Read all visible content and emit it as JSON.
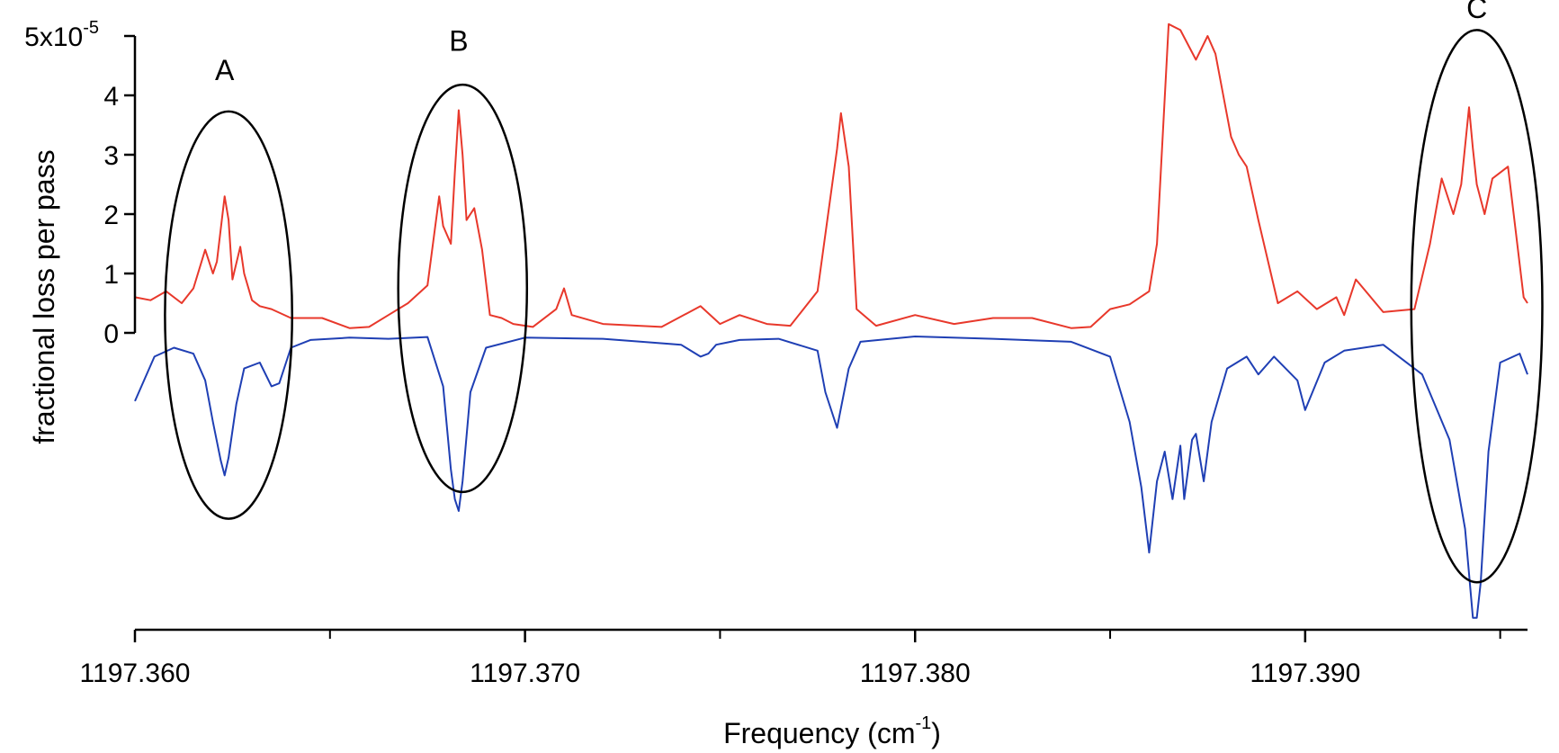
{
  "chart_data": {
    "type": "line",
    "xlabel": "Frequency (cm",
    "xlabel_sup": "-1",
    "xlabel_tail": ")",
    "ylabel": "fractional loss per pass",
    "xlim": [
      1197.36,
      1197.3957
    ],
    "ylim": [
      -5e-05,
      5e-05
    ],
    "x_major_ticks": [
      1197.36,
      1197.37,
      1197.38,
      1197.39
    ],
    "x_major_tick_labels": [
      "1197.360",
      "1197.370",
      "1197.380",
      "1197.390"
    ],
    "x_minor_ticks": [
      1197.365,
      1197.375,
      1197.385,
      1197.395
    ],
    "y_ticks": [
      0,
      1e-05,
      2e-05,
      3e-05,
      4e-05,
      5e-05
    ],
    "y_tick_labels": [
      "0",
      "1",
      "2",
      "3",
      "4",
      "5x10"
    ],
    "y_top_label_sup": "-5",
    "annotations": [
      {
        "label": "A",
        "x": 1197.3623,
        "y": 4.26e-05,
        "ellipse_center": [
          1197.3624,
          3e-06
        ],
        "ellipse_rx": 0.00163,
        "ellipse_ry": 3.43e-05
      },
      {
        "label": "B",
        "x": 1197.3683,
        "y": 4.75e-05,
        "ellipse_center": [
          1197.3684,
          7.5e-06
        ],
        "ellipse_rx": 0.00165,
        "ellipse_ry": 3.43e-05
      },
      {
        "label": "C",
        "x": 1197.3944,
        "y": 5.3e-05,
        "ellipse_center": [
          1197.3944,
          4.5e-06
        ],
        "ellipse_rx": 0.00168,
        "ellipse_ry": 4.65e-05
      }
    ],
    "series": [
      {
        "color": "#e8382b",
        "x": [
          1197.36,
          1197.3604,
          1197.3608,
          1197.3612,
          1197.3615,
          1197.3618,
          1197.362,
          1197.3621,
          1197.3623,
          1197.3624,
          1197.3625,
          1197.3627,
          1197.3628,
          1197.363,
          1197.3632,
          1197.3635,
          1197.364,
          1197.3648,
          1197.3655,
          1197.366,
          1197.3665,
          1197.367,
          1197.3675,
          1197.3678,
          1197.3679,
          1197.3681,
          1197.3682,
          1197.3683,
          1197.3684,
          1197.3685,
          1197.3687,
          1197.3689,
          1197.3691,
          1197.3694,
          1197.3697,
          1197.3702,
          1197.3708,
          1197.371,
          1197.3712,
          1197.372,
          1197.3735,
          1197.3745,
          1197.375,
          1197.3755,
          1197.3762,
          1197.3768,
          1197.3775,
          1197.378,
          1197.3781,
          1197.3783,
          1197.3785,
          1197.379,
          1197.38,
          1197.381,
          1197.382,
          1197.383,
          1197.384,
          1197.3845,
          1197.385,
          1197.3855,
          1197.386,
          1197.3862,
          1197.3865,
          1197.3868,
          1197.3872,
          1197.3875,
          1197.3877,
          1197.3879,
          1197.3881,
          1197.3883,
          1197.3885,
          1197.3888,
          1197.3893,
          1197.3898,
          1197.3903,
          1197.3908,
          1197.391,
          1197.3913,
          1197.392,
          1197.3928,
          1197.3932,
          1197.3935,
          1197.3938,
          1197.394,
          1197.3942,
          1197.3943,
          1197.3944,
          1197.3946,
          1197.3948,
          1197.3952,
          1197.3956,
          1197.3957
        ],
        "values": [
          6e-06,
          5.5e-06,
          7e-06,
          5e-06,
          7.5e-06,
          1.4e-05,
          1e-05,
          1.2e-05,
          2.3e-05,
          1.9e-05,
          9e-06,
          1.45e-05,
          1e-05,
          5.5e-06,
          4.5e-06,
          4e-06,
          2.5e-06,
          2.5e-06,
          8e-07,
          1e-06,
          3e-06,
          5e-06,
          8e-06,
          2.3e-05,
          1.8e-05,
          1.5e-05,
          2.7e-05,
          3.75e-05,
          3e-05,
          1.9e-05,
          2.1e-05,
          1.4e-05,
          3e-06,
          2.5e-06,
          1.5e-06,
          1e-06,
          4e-06,
          7.5e-06,
          3e-06,
          1.5e-06,
          1e-06,
          4.5e-06,
          1.5e-06,
          3e-06,
          1.5e-06,
          1.2e-06,
          7e-06,
          3.1e-05,
          3.7e-05,
          2.8e-05,
          4e-06,
          1.2e-06,
          3e-06,
          1.5e-06,
          2.5e-06,
          2.5e-06,
          8e-07,
          1e-06,
          4e-06,
          4.8e-06,
          7e-06,
          1.5e-05,
          5.2e-05,
          5.1e-05,
          4.6e-05,
          5e-05,
          4.7e-05,
          4e-05,
          3.3e-05,
          3e-05,
          2.8e-05,
          1.9e-05,
          5e-06,
          7e-06,
          4e-06,
          6e-06,
          3e-06,
          9e-06,
          3.5e-06,
          4e-06,
          1.5e-05,
          2.6e-05,
          2e-05,
          2.5e-05,
          3.8e-05,
          3.1e-05,
          2.5e-05,
          2e-05,
          2.6e-05,
          2.8e-05,
          6e-06,
          5e-06
        ]
      },
      {
        "color": "#1f3fb4",
        "x": [
          1197.36,
          1197.3605,
          1197.361,
          1197.3615,
          1197.3618,
          1197.362,
          1197.3622,
          1197.3623,
          1197.3624,
          1197.3626,
          1197.3628,
          1197.3632,
          1197.3635,
          1197.3637,
          1197.364,
          1197.3645,
          1197.3655,
          1197.3665,
          1197.3675,
          1197.3679,
          1197.3681,
          1197.3682,
          1197.3683,
          1197.3684,
          1197.3686,
          1197.369,
          1197.37,
          1197.372,
          1197.374,
          1197.3745,
          1197.3747,
          1197.3749,
          1197.3755,
          1197.3765,
          1197.3775,
          1197.3777,
          1197.378,
          1197.3783,
          1197.3786,
          1197.38,
          1197.382,
          1197.384,
          1197.385,
          1197.3855,
          1197.3858,
          1197.386,
          1197.3862,
          1197.3864,
          1197.3866,
          1197.3868,
          1197.3869,
          1197.3871,
          1197.3872,
          1197.3874,
          1197.3876,
          1197.388,
          1197.3885,
          1197.3888,
          1197.3892,
          1197.3898,
          1197.39,
          1197.3905,
          1197.391,
          1197.392,
          1197.393,
          1197.3937,
          1197.3941,
          1197.3943,
          1197.3944,
          1197.3945,
          1197.3947,
          1197.395,
          1197.3955,
          1197.3957
        ],
        "values": [
          -1.15e-05,
          -4e-06,
          -2.5e-06,
          -3.5e-06,
          -8e-06,
          -1.5e-05,
          -2.15e-05,
          -2.4e-05,
          -2.1e-05,
          -1.2e-05,
          -6e-06,
          -5e-06,
          -9e-06,
          -8.5e-06,
          -2.5e-06,
          -1.2e-06,
          -8e-07,
          -1e-06,
          -7e-07,
          -9e-06,
          -2.3e-05,
          -2.8e-05,
          -3e-05,
          -2.5e-05,
          -1e-05,
          -2.5e-06,
          -8e-07,
          -1e-06,
          -2e-06,
          -4e-06,
          -3.5e-06,
          -2e-06,
          -1.2e-06,
          -1e-06,
          -3e-06,
          -1e-05,
          -1.6e-05,
          -6e-06,
          -1.5e-06,
          -6e-07,
          -1e-06,
          -1.5e-06,
          -4e-06,
          -1.5e-05,
          -2.6e-05,
          -3.7e-05,
          -2.5e-05,
          -2e-05,
          -2.8e-05,
          -1.9e-05,
          -2.8e-05,
          -1.8e-05,
          -1.7e-05,
          -2.5e-05,
          -1.5e-05,
          -6e-06,
          -4e-06,
          -7e-06,
          -4e-06,
          -8e-06,
          -1.3e-05,
          -5e-06,
          -3e-06,
          -2e-06,
          -7e-06,
          -1.8e-05,
          -3.3e-05,
          -4.8e-05,
          -4.8e-05,
          -4.2e-05,
          -2e-05,
          -5e-06,
          -3.5e-06,
          -7e-06
        ]
      }
    ]
  }
}
